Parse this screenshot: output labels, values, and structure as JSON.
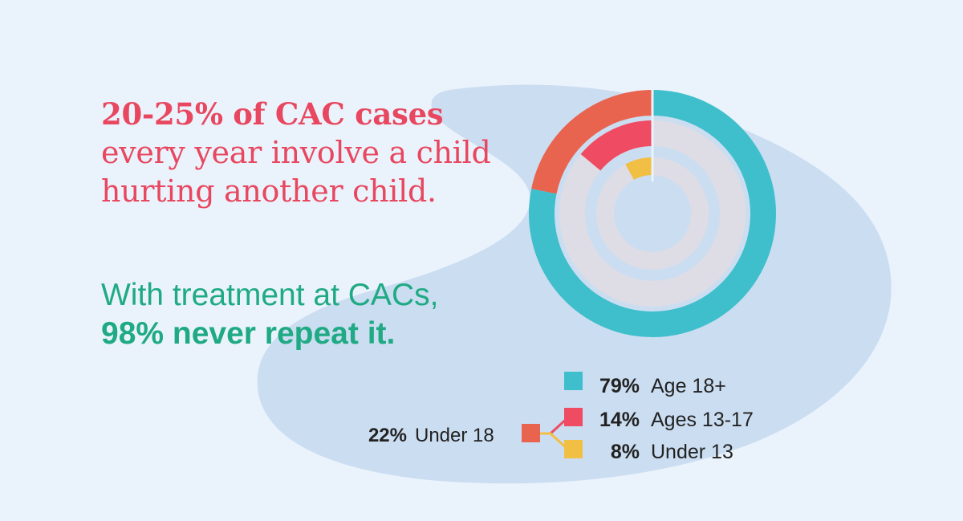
{
  "headline": {
    "strong": "20-25% of CAC cases",
    "rest_line1": "every year involve a child",
    "rest_line2": "hurting another child."
  },
  "outcome": {
    "pre": "With treatment at CACs,",
    "strong": "98% never repeat it."
  },
  "colors": {
    "background": "#eaf3fc",
    "blob": "#cbddf1",
    "headline": "#e8475f",
    "outcome": "#1faa84",
    "track": "#dedde6"
  },
  "chart_data": {
    "type": "pie",
    "style": "concentric-rings",
    "title": "",
    "rings": [
      {
        "name": "Age 18+ vs Under 18",
        "slices": [
          {
            "label": "Age 18+",
            "value_label": "79%",
            "value": 79,
            "color": "#3fbfcb"
          },
          {
            "label": "Under 18",
            "value_label": "22%",
            "value": 22,
            "color": "#e8644f"
          }
        ]
      },
      {
        "name": "Ages 13-17",
        "slices": [
          {
            "label": "Ages 13-17",
            "value_label": "14%",
            "value": 14,
            "color": "#ef4b62"
          }
        ]
      },
      {
        "name": "Under 13",
        "slices": [
          {
            "label": "Under 13",
            "value_label": "8%",
            "value": 8,
            "color": "#f2bf45"
          }
        ]
      }
    ],
    "legend": [
      {
        "pct": "79%",
        "label": "Age 18+",
        "color": "#3fbfcb"
      },
      {
        "pct": "14%",
        "label": "Ages 13-17",
        "color": "#ef4b62"
      },
      {
        "pct": "8%",
        "label": "Under 13",
        "color": "#f2bf45"
      }
    ],
    "group_legend": {
      "pct": "22%",
      "label": "Under 18",
      "color": "#e8644f"
    },
    "legend_placement": "bottom-right"
  }
}
